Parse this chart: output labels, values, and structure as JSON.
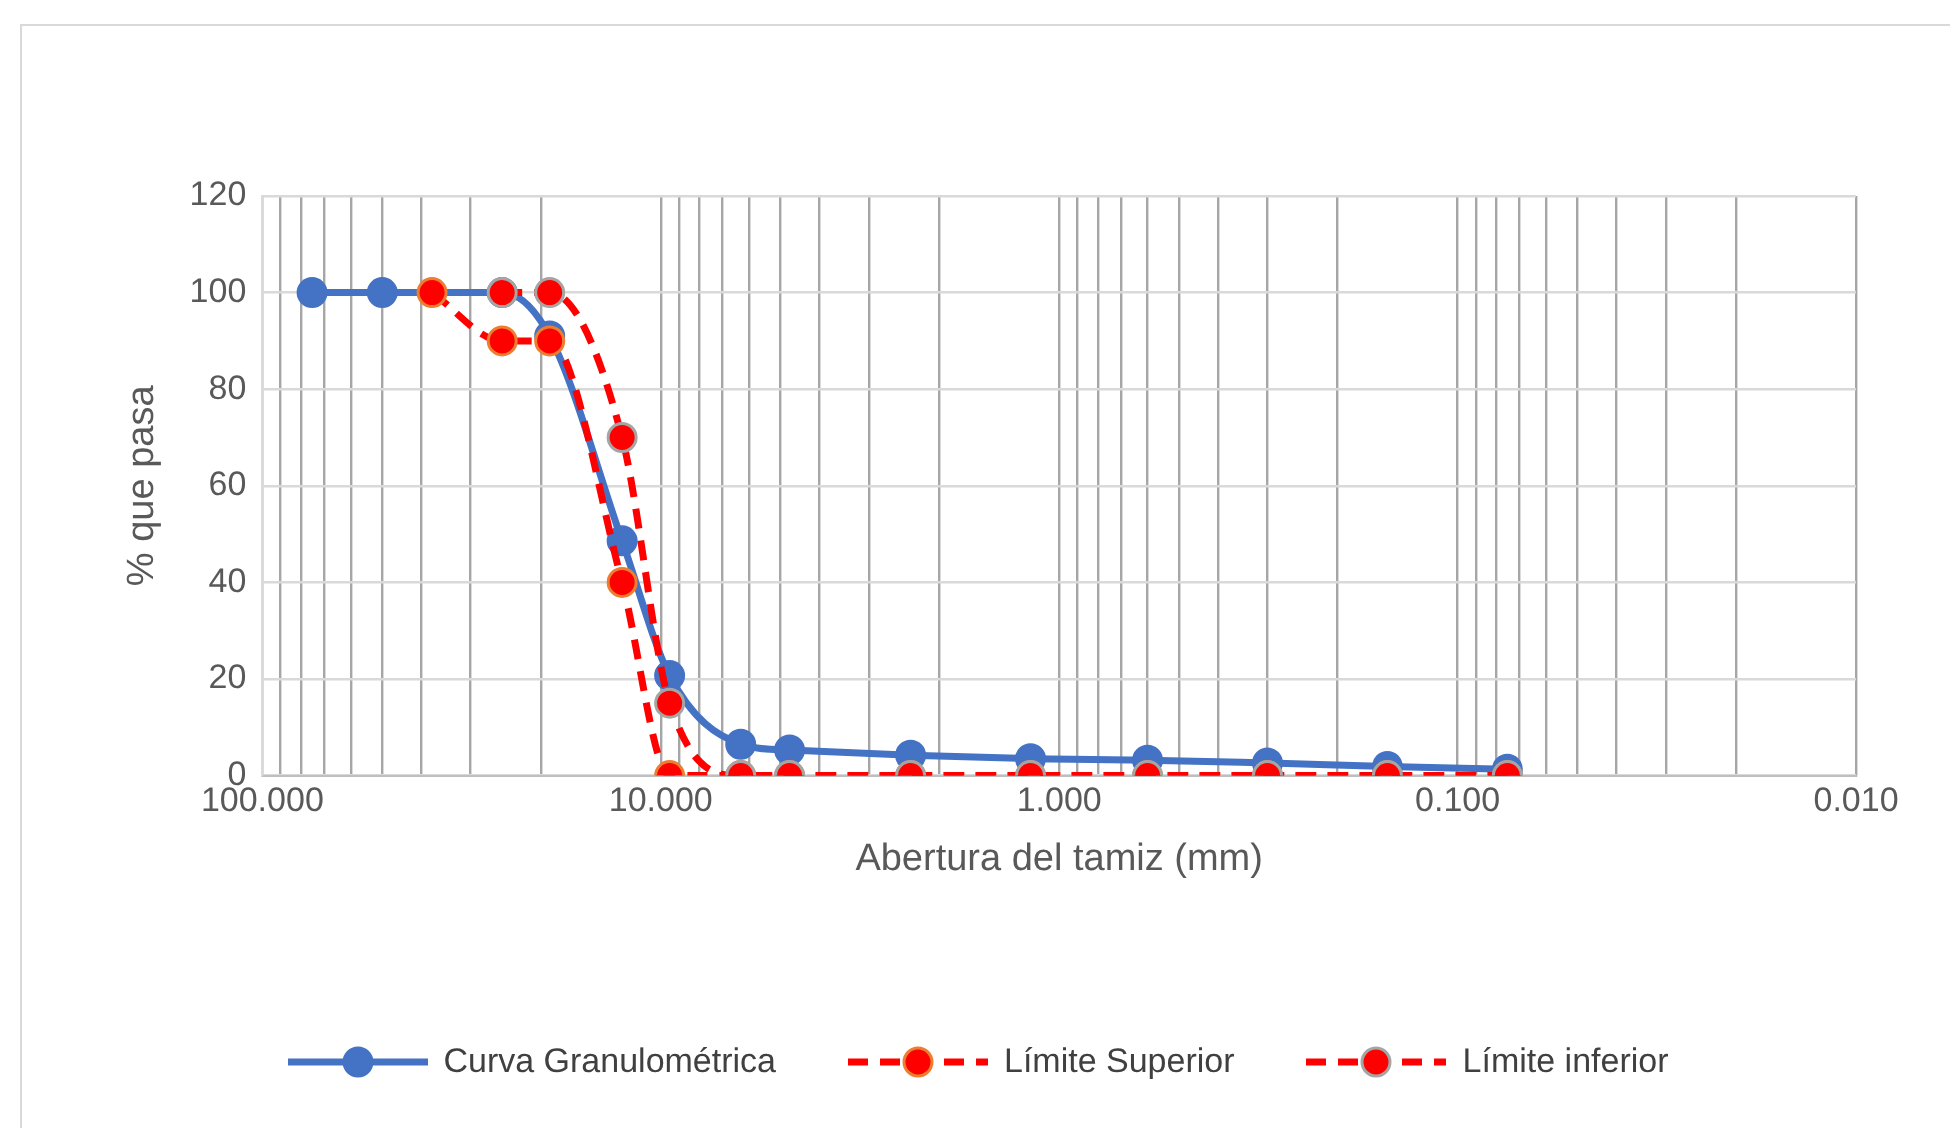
{
  "chart_data": {
    "type": "line",
    "xlabel": "Abertura del tamiz (mm)",
    "ylabel": "% que pasa",
    "log": "x",
    "grid": true,
    "legend": "bottom",
    "marker": "circle",
    "xlim": [
      100,
      0.01
    ],
    "ylim": [
      0,
      120
    ],
    "yticks": [
      0,
      20,
      40,
      60,
      80,
      100,
      120
    ],
    "xticks": [
      {
        "value": 100,
        "label": "100.000"
      },
      {
        "value": 90,
        "label": null
      },
      {
        "value": 80,
        "label": null
      },
      {
        "value": 70,
        "label": null
      },
      {
        "value": 60,
        "label": null
      },
      {
        "value": 50,
        "label": null
      },
      {
        "value": 40,
        "label": null
      },
      {
        "value": 30,
        "label": null
      },
      {
        "value": 20,
        "label": null
      },
      {
        "value": 10,
        "label": "10.000"
      },
      {
        "value": 9,
        "label": null
      },
      {
        "value": 8,
        "label": null
      },
      {
        "value": 7,
        "label": null
      },
      {
        "value": 6,
        "label": null
      },
      {
        "value": 5,
        "label": null
      },
      {
        "value": 4,
        "label": null
      },
      {
        "value": 3,
        "label": null
      },
      {
        "value": 2,
        "label": null
      },
      {
        "value": 1,
        "label": "1.000"
      },
      {
        "value": 0.9,
        "label": null
      },
      {
        "value": 0.8,
        "label": null
      },
      {
        "value": 0.7,
        "label": null
      },
      {
        "value": 0.6,
        "label": null
      },
      {
        "value": 0.5,
        "label": null
      },
      {
        "value": 0.4,
        "label": null
      },
      {
        "value": 0.3,
        "label": null
      },
      {
        "value": 0.2,
        "label": null
      },
      {
        "value": 0.1,
        "label": "0.100"
      },
      {
        "value": 0.09,
        "label": null
      },
      {
        "value": 0.08,
        "label": null
      },
      {
        "value": 0.07,
        "label": null
      },
      {
        "value": 0.06,
        "label": null
      },
      {
        "value": 0.05,
        "label": null
      },
      {
        "value": 0.04,
        "label": null
      },
      {
        "value": 0.03,
        "label": null
      },
      {
        "value": 0.02,
        "label": null
      },
      {
        "value": 0.01,
        "label": "0.010"
      }
    ],
    "series": [
      {
        "name": "Curva Granulométrica",
        "color": "#4472c4",
        "line_style": "solid",
        "x": [
          75,
          50,
          25,
          19,
          12.5,
          9.5,
          6.3,
          4.75,
          2.36,
          1.18,
          0.6,
          0.3,
          0.15,
          0.075
        ],
        "values": [
          100,
          100,
          100,
          91,
          48.6,
          20.7,
          6.5,
          5.3,
          4.2,
          3.5,
          3.2,
          2.6,
          1.9,
          1.3
        ]
      },
      {
        "name": "Límite Superior",
        "color": "#ff0000",
        "line_style": "dashed",
        "x": [
          37.5,
          25,
          19,
          12.5,
          9.5,
          6.3,
          4.75,
          2.36,
          1.18,
          0.6,
          0.3,
          0.15,
          0.075
        ],
        "values": [
          100,
          90,
          90,
          40,
          0,
          0,
          0,
          0,
          0,
          0,
          0,
          0,
          0
        ]
      },
      {
        "name": "Límite inferior",
        "color": "#ff0000",
        "line_style": "dashed",
        "x": [
          25,
          19,
          12.5,
          9.5,
          6.3,
          4.75,
          2.36,
          1.18,
          0.6,
          0.3,
          0.15,
          0.075
        ],
        "values": [
          100,
          100,
          70,
          15,
          0,
          0,
          0,
          0,
          0,
          0,
          0,
          0
        ]
      }
    ]
  }
}
